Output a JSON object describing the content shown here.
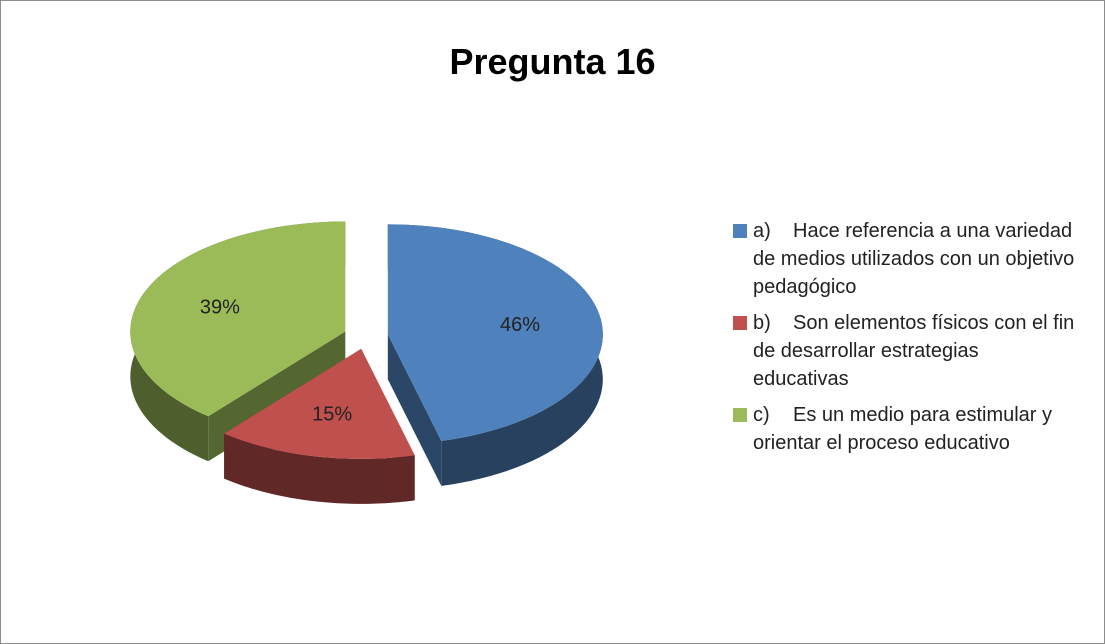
{
  "chart_data": {
    "type": "pie",
    "title": "Pregunta 16",
    "categories": [
      "a)\tHace referencia a una variedad de medios utilizados con un objetivo pedagógico",
      "b)\tSon elementos físicos con el fin de desarrollar estrategias educativas",
      "c)\tEs un medio para estimular y orientar el proceso educativo"
    ],
    "values": [
      46,
      15,
      39
    ],
    "value_labels": [
      "46%",
      "15%",
      "39%"
    ],
    "colors": [
      "#4f81bd",
      "#c0504d",
      "#9bbb59"
    ],
    "legend": "right"
  }
}
